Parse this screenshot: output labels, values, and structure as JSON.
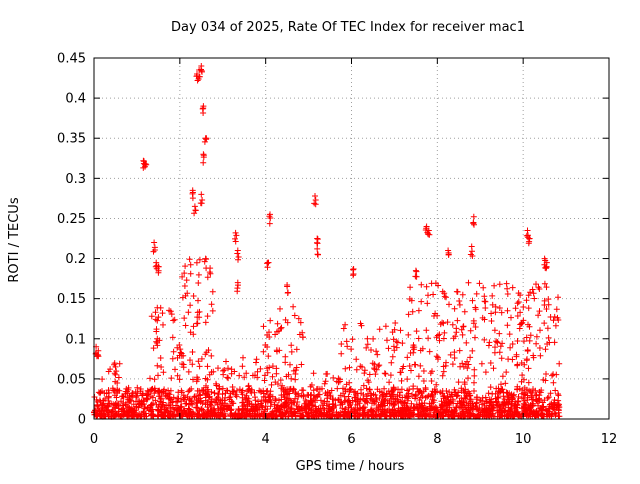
{
  "chart_data": {
    "type": "scatter",
    "title": "Day 034 of 2025, Rate Of TEC Index for receiver mac1",
    "xlabel": "GPS time / hours",
    "ylabel": "ROTI / TECUs",
    "xlim": [
      0,
      12
    ],
    "ylim": [
      0,
      0.45
    ],
    "x_ticks": [
      0,
      2,
      4,
      6,
      8,
      10,
      12
    ],
    "x_tick_labels": [
      "0",
      "2",
      "4",
      "6",
      "8",
      "10",
      "12"
    ],
    "y_ticks": [
      0,
      0.05,
      0.1,
      0.15,
      0.2,
      0.25,
      0.3,
      0.35,
      0.4,
      0.45
    ],
    "y_tick_labels": [
      "0",
      "0.05",
      "0.1",
      "0.15",
      "0.2",
      "0.25",
      "0.3",
      "0.35",
      "0.4",
      "0.45"
    ],
    "grid": true,
    "marker": "+",
    "series": [
      {
        "name": "ROTI",
        "color": "#ff0000",
        "x_range": [
          0,
          10.85
        ],
        "notable_points": [
          {
            "x": 0.05,
            "y": 0.09
          },
          {
            "x": 0.1,
            "y": 0.085
          },
          {
            "x": 0.5,
            "y": 0.065
          },
          {
            "x": 1.15,
            "y": 0.322
          },
          {
            "x": 1.2,
            "y": 0.318
          },
          {
            "x": 1.4,
            "y": 0.22
          },
          {
            "x": 1.45,
            "y": 0.195
          },
          {
            "x": 1.5,
            "y": 0.19
          },
          {
            "x": 2.3,
            "y": 0.285
          },
          {
            "x": 2.35,
            "y": 0.265
          },
          {
            "x": 2.4,
            "y": 0.43
          },
          {
            "x": 2.45,
            "y": 0.435
          },
          {
            "x": 2.5,
            "y": 0.44
          },
          {
            "x": 2.55,
            "y": 0.39
          },
          {
            "x": 2.6,
            "y": 0.35
          },
          {
            "x": 2.5,
            "y": 0.28
          },
          {
            "x": 2.55,
            "y": 0.33
          },
          {
            "x": 2.6,
            "y": 0.2
          },
          {
            "x": 3.3,
            "y": 0.232
          },
          {
            "x": 3.35,
            "y": 0.21
          },
          {
            "x": 3.35,
            "y": 0.17
          },
          {
            "x": 4.05,
            "y": 0.195
          },
          {
            "x": 4.1,
            "y": 0.255
          },
          {
            "x": 4.5,
            "y": 0.167
          },
          {
            "x": 5.15,
            "y": 0.278
          },
          {
            "x": 5.2,
            "y": 0.225
          },
          {
            "x": 5.2,
            "y": 0.212
          },
          {
            "x": 6.05,
            "y": 0.187
          },
          {
            "x": 7.5,
            "y": 0.185
          },
          {
            "x": 7.75,
            "y": 0.24
          },
          {
            "x": 7.8,
            "y": 0.235
          },
          {
            "x": 8.25,
            "y": 0.21
          },
          {
            "x": 8.85,
            "y": 0.252
          },
          {
            "x": 8.8,
            "y": 0.215
          },
          {
            "x": 10.1,
            "y": 0.235
          },
          {
            "x": 10.15,
            "y": 0.225
          },
          {
            "x": 10.5,
            "y": 0.2
          },
          {
            "x": 10.55,
            "y": 0.195
          }
        ],
        "activity_envelope": [
          {
            "x_start": 0.0,
            "x_end": 0.6,
            "typical_max": 0.07
          },
          {
            "x_start": 0.6,
            "x_end": 1.3,
            "typical_max": 0.045
          },
          {
            "x_start": 1.3,
            "x_end": 2.0,
            "typical_max": 0.14
          },
          {
            "x_start": 2.0,
            "x_end": 2.8,
            "typical_max": 0.2
          },
          {
            "x_start": 2.8,
            "x_end": 3.9,
            "typical_max": 0.08
          },
          {
            "x_start": 3.9,
            "x_end": 4.9,
            "typical_max": 0.14
          },
          {
            "x_start": 4.9,
            "x_end": 5.7,
            "typical_max": 0.06
          },
          {
            "x_start": 5.7,
            "x_end": 7.3,
            "typical_max": 0.12
          },
          {
            "x_start": 7.3,
            "x_end": 10.85,
            "typical_max": 0.17
          }
        ]
      }
    ]
  }
}
